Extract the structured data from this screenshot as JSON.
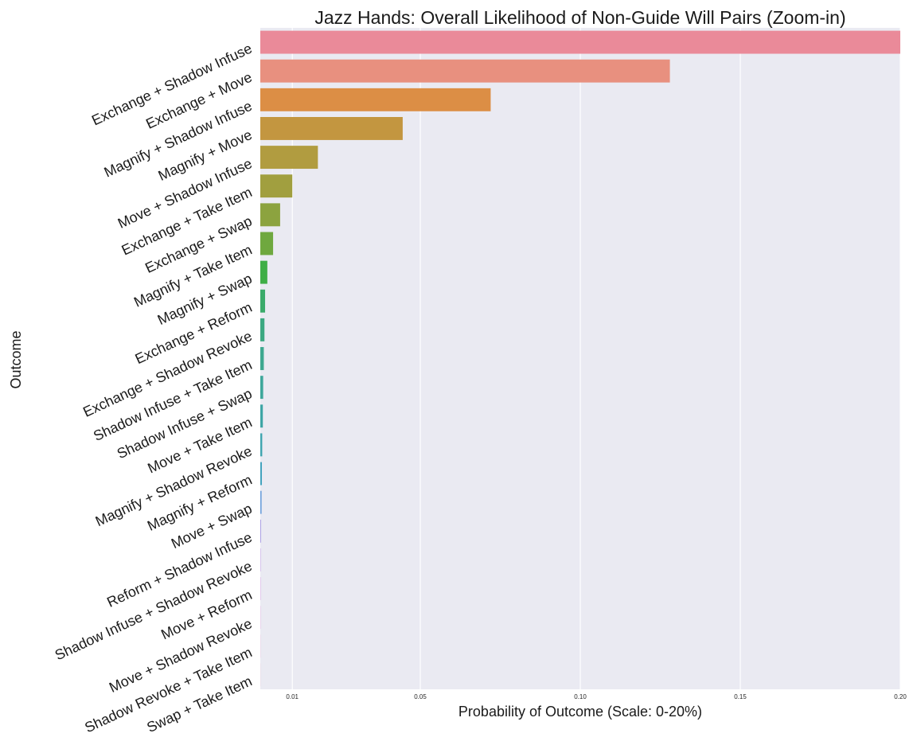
{
  "chart_data": {
    "type": "bar",
    "orientation": "horizontal",
    "title": "Jazz Hands: Overall Likelihood of Non-Guide Will Pairs (Zoom-in)",
    "xlabel": "Probability of Outcome (Scale: 0-20%)",
    "ylabel": "Outcome",
    "xlim": [
      0.0,
      0.2
    ],
    "x_ticks": [
      0.01,
      0.05,
      0.1,
      0.15,
      0.2
    ],
    "x_tick_labels": [
      "0.01",
      "0.05",
      "0.10",
      "0.15",
      "0.20"
    ],
    "grid": true,
    "background": "#eaeaf2",
    "categories": [
      "Exchange + Shadow Infuse",
      "Exchange + Move",
      "Magnify + Shadow Infuse",
      "Magnify + Move",
      "Move + Shadow Infuse",
      "Exchange + Take Item",
      "Exchange + Swap",
      "Magnify + Take Item",
      "Magnify + Swap",
      "Exchange + Reform",
      "Exchange + Shadow Revoke",
      "Shadow Infuse + Take Item",
      "Shadow Infuse + Swap",
      "Move + Take Item",
      "Magnify + Shadow Revoke",
      "Magnify + Reform",
      "Move + Swap",
      "Reform + Shadow Infuse",
      "Shadow Infuse + Shadow Revoke",
      "Move + Reform",
      "Move + Shadow Revoke",
      "Shadow Revoke + Take Item",
      "Swap + Take Item"
    ],
    "values": [
      0.205,
      0.128,
      0.072,
      0.0445,
      0.018,
      0.01,
      0.0062,
      0.004,
      0.0022,
      0.0015,
      0.0013,
      0.0011,
      0.0009,
      0.0008,
      0.0006,
      0.0005,
      0.0004,
      0.0002,
      0.0001,
      8e-05,
      5e-05,
      3e-05,
      2e-05
    ],
    "colors": [
      "#ea8a99",
      "#e8907f",
      "#dc8e45",
      "#c39640",
      "#b19c40",
      "#a19f3f",
      "#8ca33f",
      "#6fa83f",
      "#3fae47",
      "#3bab6b",
      "#3ca982",
      "#3ea890",
      "#3ea79b",
      "#3fa6a6",
      "#40a5b0",
      "#43a3be",
      "#6c9edb",
      "#9d8fe0",
      "#b98ae4",
      "#d185e0",
      "#e181d4",
      "#e57fbf",
      "#e884ab"
    ]
  }
}
